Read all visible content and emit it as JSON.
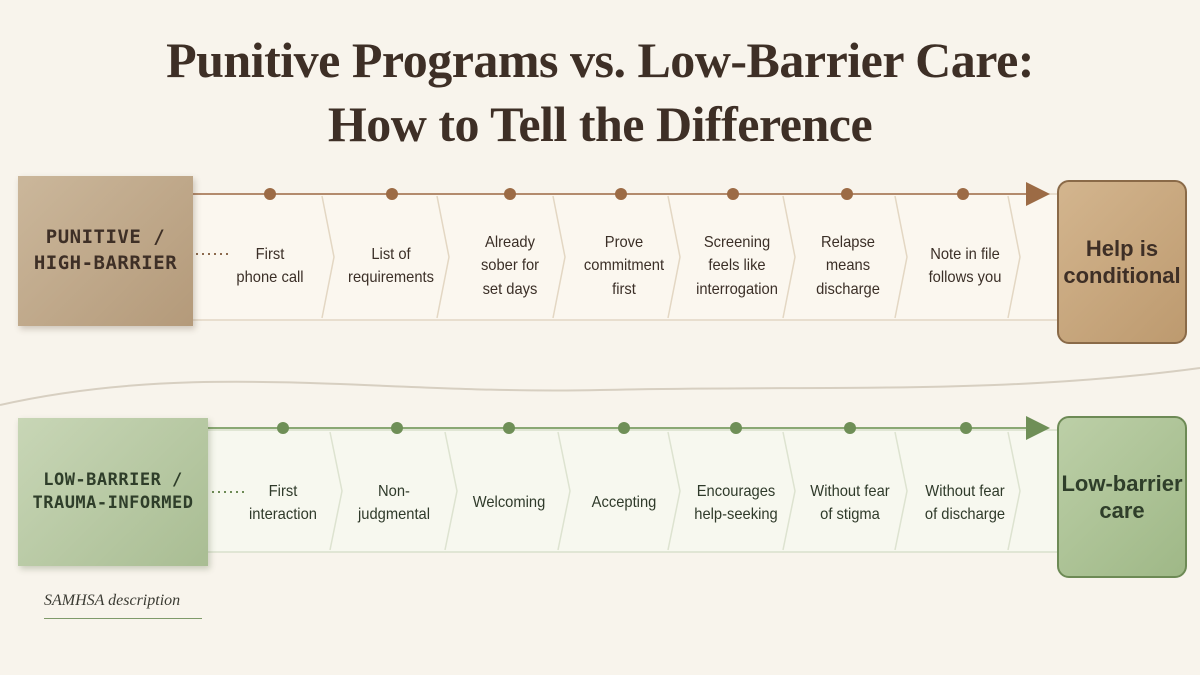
{
  "title": {
    "line1": "Punitive Programs vs. Low-Barrier Care:",
    "line2": "How to Tell the Difference"
  },
  "punitive": {
    "label": "PUNITIVE /\nHIGH-BARRIER",
    "steps": [
      "First\nphone call",
      "List of\nrequirements",
      "Already\nsober for\nset days",
      "Prove\ncommitment\nfirst",
      "Screening\nfeels like\ninterrogation",
      "Relapse\nmeans\ndischarge",
      "Note in file\nfollows you"
    ],
    "outcome": "Help is\nconditional",
    "colors": {
      "box": "#bfa586",
      "dot": "#9c6b45",
      "line": "#b38b6d"
    }
  },
  "low_barrier": {
    "label": "LOW-BARRIER /\nTRAUMA-INFORMED",
    "steps": [
      "First\ninteraction",
      "Non-\njudgmental",
      "Welcoming",
      "Accepting",
      "Encourages\nhelp-seeking",
      "Without fear\nof stigma",
      "Without fear\nof discharge"
    ],
    "outcome": "Low-barrier\ncare",
    "colors": {
      "box": "#b4c79f",
      "dot": "#6f8f57",
      "line": "#8aa874"
    }
  },
  "source": "SAMHSA description"
}
